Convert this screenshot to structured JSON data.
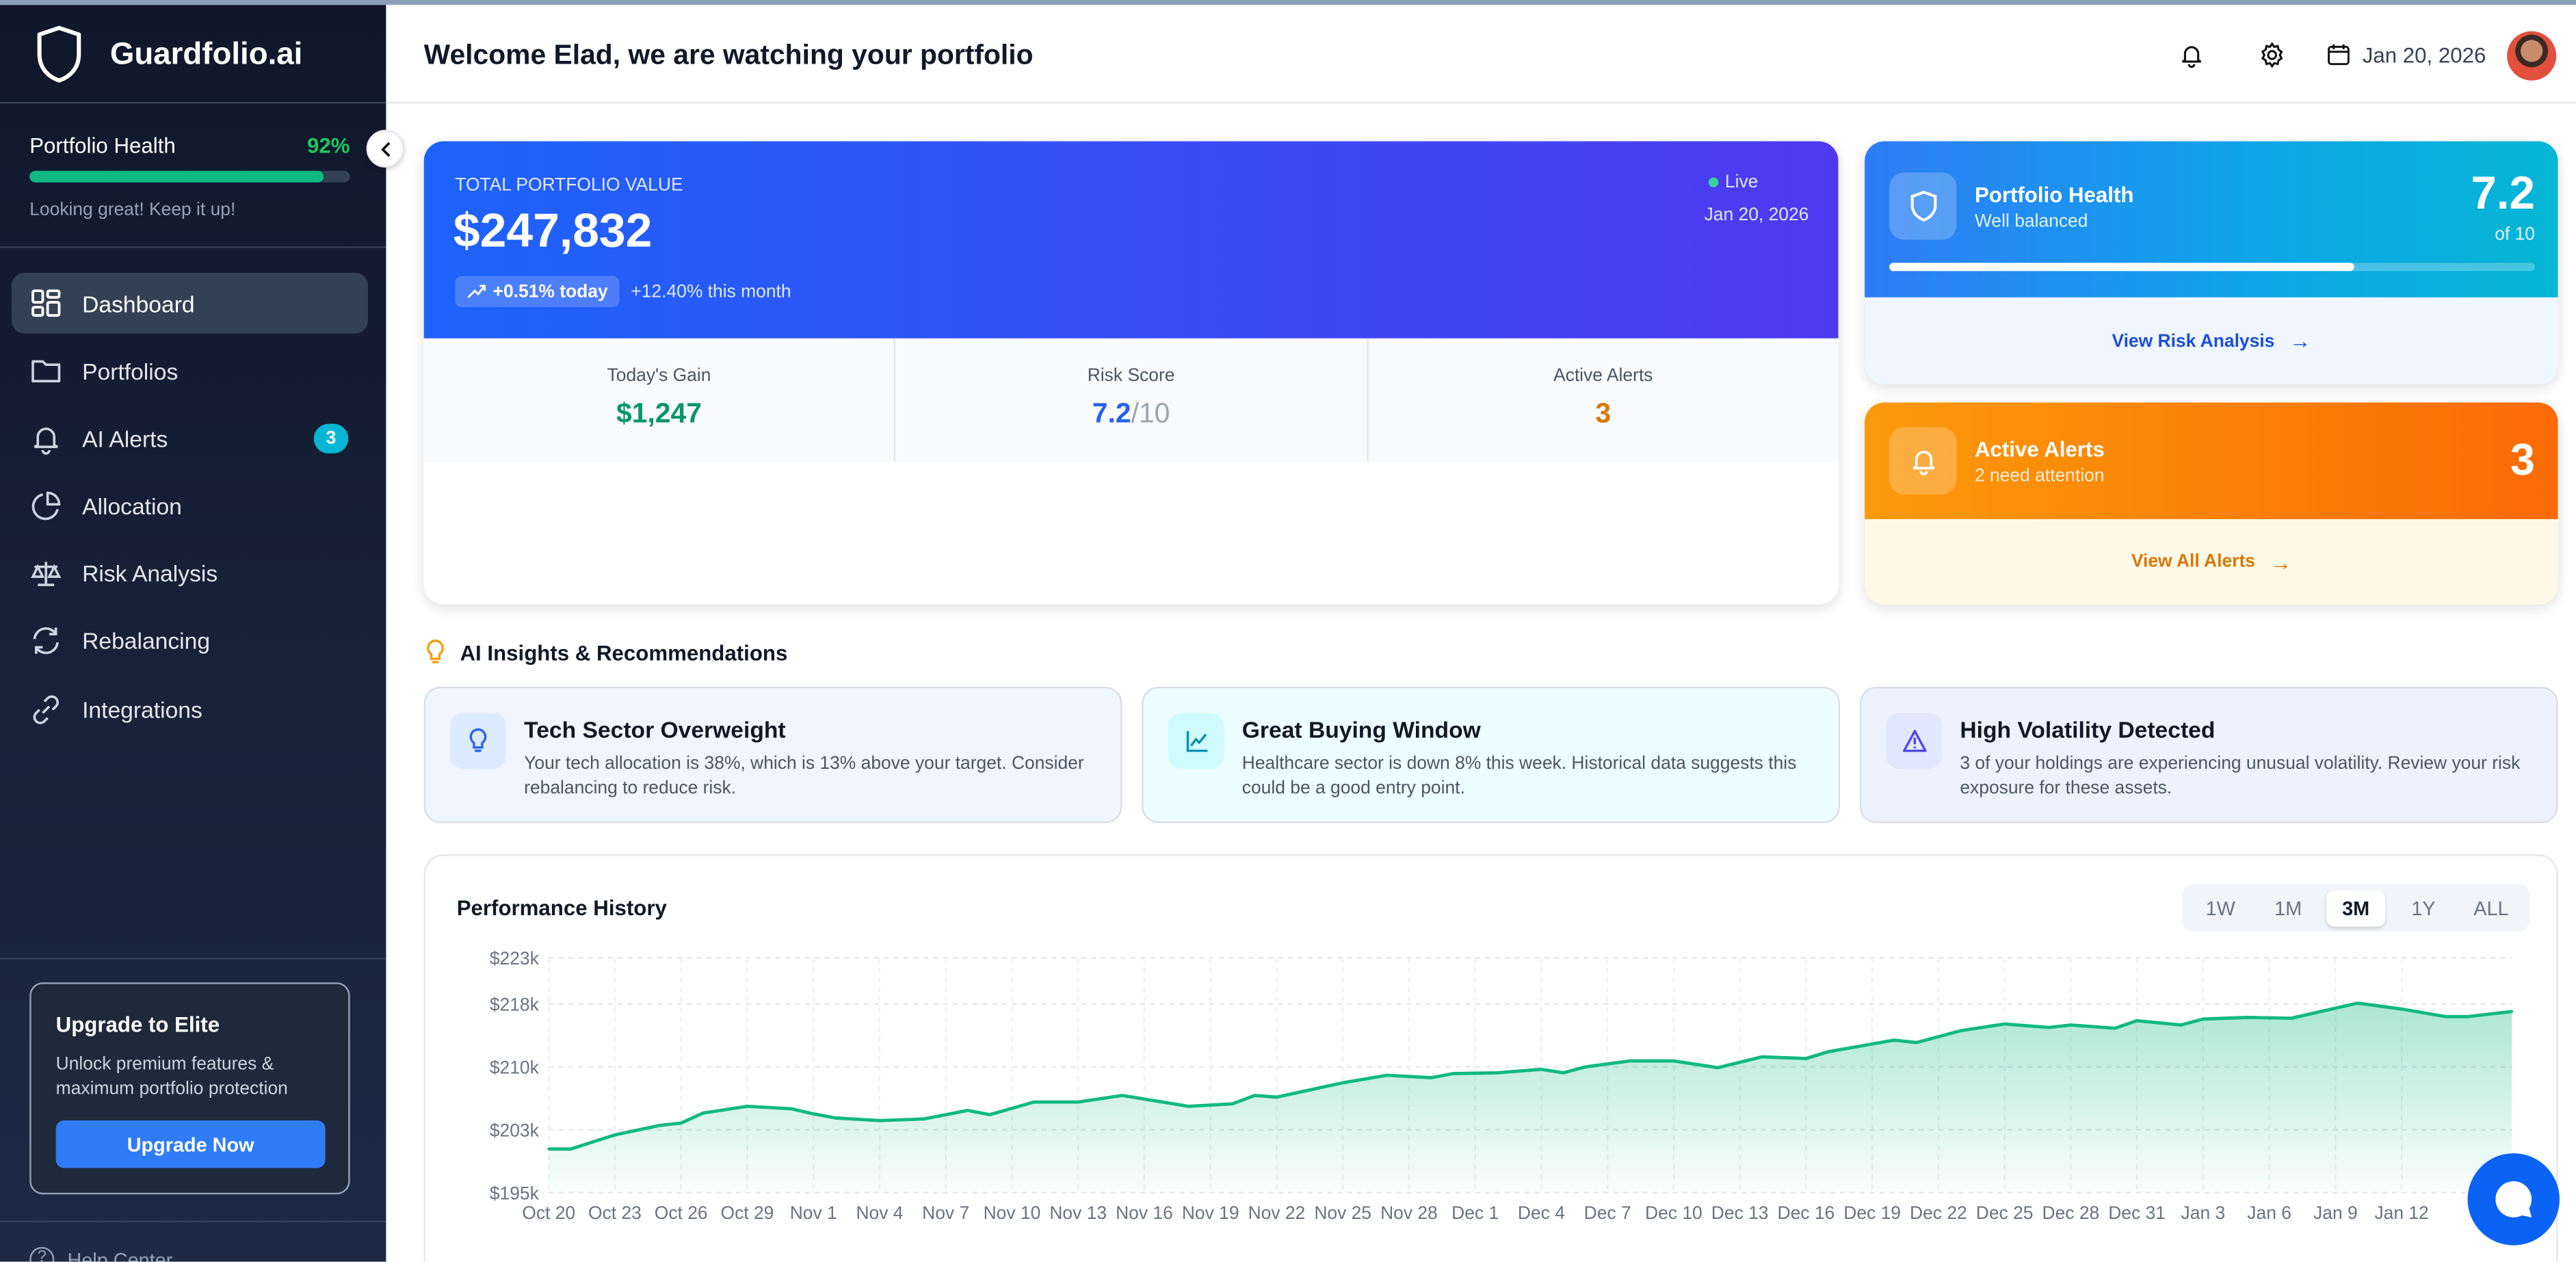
{
  "brand": {
    "name": "Guardfolio.ai"
  },
  "sidebar": {
    "health": {
      "label": "Portfolio Health",
      "value": "92%",
      "progress": 92,
      "message": "Looking great! Keep it up!"
    },
    "items": [
      {
        "label": "Dashboard",
        "icon": "grid-icon",
        "active": true
      },
      {
        "label": "Portfolios",
        "icon": "folder-icon"
      },
      {
        "label": "AI Alerts",
        "icon": "bell-icon",
        "badge": "3"
      },
      {
        "label": "Allocation",
        "icon": "pie-chart-icon"
      },
      {
        "label": "Risk Analysis",
        "icon": "scale-icon"
      },
      {
        "label": "Rebalancing",
        "icon": "refresh-icon"
      },
      {
        "label": "Integrations",
        "icon": "link-icon"
      }
    ],
    "upgrade": {
      "title": "Upgrade to Elite",
      "text": "Unlock premium features & maximum portfolio protection",
      "button": "Upgrade Now"
    },
    "help": "Help Center"
  },
  "header": {
    "title": "Welcome Elad, we are watching your portfolio",
    "date": "Jan 20, 2026"
  },
  "portfolio": {
    "label": "TOTAL PORTFOLIO VALUE",
    "value": "$247,832",
    "live": "Live",
    "date": "Jan 20, 2026",
    "today_change": "+0.51% today",
    "month_change": "+12.40% this month",
    "stats": [
      {
        "label": "Today's Gain",
        "value": "$1,247",
        "color": "#059669"
      },
      {
        "label": "Risk Score",
        "value": "7.2",
        "suffix": "/10",
        "color": "#2563eb"
      },
      {
        "label": "Active Alerts",
        "value": "3",
        "color": "#d97706"
      }
    ]
  },
  "health_card": {
    "title": "Portfolio Health",
    "subtitle": "Well balanced",
    "score": "7.2",
    "of": "of 10",
    "progress": 72,
    "link": "View Risk Analysis"
  },
  "alerts_card": {
    "title": "Active Alerts",
    "subtitle": "2 need attention",
    "count": "3",
    "link": "View All Alerts"
  },
  "insights": {
    "title": "AI Insights & Recommendations",
    "cards": [
      {
        "title": "Tech Sector Overweight",
        "text": "Your tech allocation is 38%, which is 13% above your target. Consider rebalancing to reduce risk.",
        "icon": "lightbulb-icon"
      },
      {
        "title": "Great Buying Window",
        "text": "Healthcare sector is down 8% this week. Historical data suggests this could be a good entry point.",
        "icon": "line-chart-icon"
      },
      {
        "title": "High Volatility Detected",
        "text": "3 of your holdings are experiencing unusual volatility. Review your risk exposure for these assets.",
        "icon": "warning-icon"
      }
    ]
  },
  "performance": {
    "title": "Performance History",
    "ranges": [
      "1W",
      "1M",
      "3M",
      "1Y",
      "ALL"
    ],
    "selected": "3M"
  },
  "chart_data": {
    "type": "area",
    "ylim": [
      195,
      223
    ],
    "yticks": [
      {
        "v": 195,
        "label": "$195k"
      },
      {
        "v": 202.5,
        "label": "$203k"
      },
      {
        "v": 210,
        "label": "$210k"
      },
      {
        "v": 217.5,
        "label": "$218k"
      },
      {
        "v": 223,
        "label": "$223k"
      }
    ],
    "xticks": [
      "Oct 20",
      "Oct 23",
      "Oct 26",
      "Oct 29",
      "Nov 1",
      "Nov 4",
      "Nov 7",
      "Nov 10",
      "Nov 13",
      "Nov 16",
      "Nov 19",
      "Nov 22",
      "Nov 25",
      "Nov 28",
      "Dec 1",
      "Dec 4",
      "Dec 7",
      "Dec 10",
      "Dec 13",
      "Dec 16",
      "Dec 19",
      "Dec 22",
      "Dec 25",
      "Dec 28",
      "Dec 31",
      "Jan 3",
      "Jan 6",
      "Jan 9",
      "Jan 12"
    ],
    "grid": true,
    "color": "#10b981",
    "points": [
      [
        "2025-10-20",
        200.2
      ],
      [
        "2025-10-21",
        200.2
      ],
      [
        "2025-10-23",
        201.9
      ],
      [
        "2025-10-25",
        203.0
      ],
      [
        "2025-10-26",
        203.3
      ],
      [
        "2025-10-27",
        204.5
      ],
      [
        "2025-10-29",
        205.3
      ],
      [
        "2025-10-31",
        205.0
      ],
      [
        "2025-11-01",
        204.4
      ],
      [
        "2025-11-02",
        203.9
      ],
      [
        "2025-11-04",
        203.6
      ],
      [
        "2025-11-06",
        203.8
      ],
      [
        "2025-11-08",
        204.8
      ],
      [
        "2025-11-09",
        204.3
      ],
      [
        "2025-11-11",
        205.8
      ],
      [
        "2025-11-13",
        205.8
      ],
      [
        "2025-11-15",
        206.6
      ],
      [
        "2025-11-18",
        205.3
      ],
      [
        "2025-11-20",
        205.6
      ],
      [
        "2025-11-21",
        206.6
      ],
      [
        "2025-11-22",
        206.4
      ],
      [
        "2025-11-25",
        208.1
      ],
      [
        "2025-11-27",
        209.0
      ],
      [
        "2025-11-29",
        208.7
      ],
      [
        "2025-11-30",
        209.2
      ],
      [
        "2025-12-02",
        209.3
      ],
      [
        "2025-12-04",
        209.7
      ],
      [
        "2025-12-05",
        209.3
      ],
      [
        "2025-12-06",
        210.0
      ],
      [
        "2025-12-08",
        210.7
      ],
      [
        "2025-12-10",
        210.7
      ],
      [
        "2025-12-12",
        209.9
      ],
      [
        "2025-12-14",
        211.2
      ],
      [
        "2025-12-16",
        211.0
      ],
      [
        "2025-12-17",
        211.8
      ],
      [
        "2025-12-20",
        213.2
      ],
      [
        "2025-12-21",
        212.9
      ],
      [
        "2025-12-23",
        214.3
      ],
      [
        "2025-12-25",
        215.1
      ],
      [
        "2025-12-27",
        214.7
      ],
      [
        "2025-12-28",
        215.0
      ],
      [
        "2025-12-30",
        214.6
      ],
      [
        "2025-12-31",
        215.5
      ],
      [
        "2026-01-02",
        215.0
      ],
      [
        "2026-01-03",
        215.7
      ],
      [
        "2026-01-05",
        215.9
      ],
      [
        "2026-01-07",
        215.8
      ],
      [
        "2026-01-10",
        217.6
      ],
      [
        "2026-01-12",
        216.9
      ],
      [
        "2026-01-14",
        216.0
      ],
      [
        "2026-01-15",
        216.0
      ],
      [
        "2026-01-17",
        216.6
      ]
    ]
  }
}
